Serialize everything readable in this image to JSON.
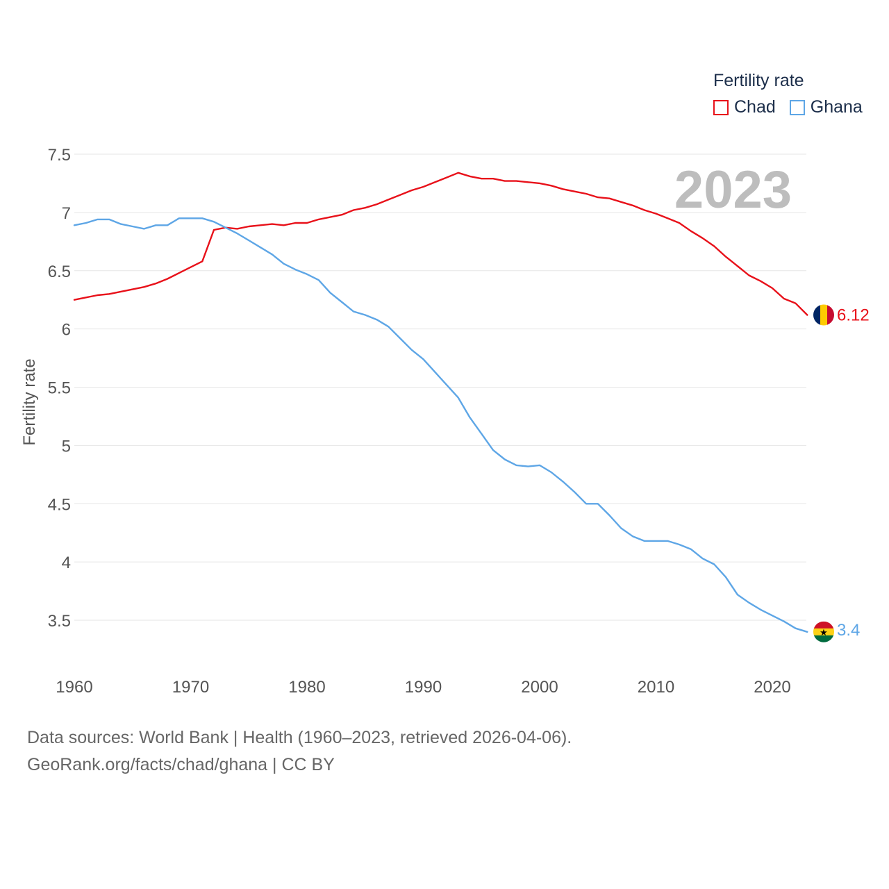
{
  "legend": {
    "title": "Fertility rate",
    "items": [
      {
        "name": "Chad",
        "color": "#e8111a"
      },
      {
        "name": "Ghana",
        "color": "#5ea6e6"
      }
    ]
  },
  "year_label": "2023",
  "footer": {
    "line1": "Data sources: World Bank | Health (1960–2023, retrieved 2026-04-06).",
    "line2": "GeoRank.org/facts/chad/ghana | CC BY"
  },
  "chart_data": {
    "type": "line",
    "title": "",
    "xlabel": "",
    "ylabel": "Fertility rate",
    "xlim": [
      1960,
      2023
    ],
    "ylim": [
      3.5,
      7.5
    ],
    "xticks": [
      "1960",
      "1970",
      "1980",
      "1990",
      "2000",
      "2010",
      "2020"
    ],
    "yticks": [
      "3.5",
      "4",
      "4.5",
      "5",
      "5.5",
      "6",
      "6.5",
      "7",
      "7.5"
    ],
    "x": [
      1960,
      1961,
      1962,
      1963,
      1964,
      1965,
      1966,
      1967,
      1968,
      1969,
      1970,
      1971,
      1972,
      1973,
      1974,
      1975,
      1976,
      1977,
      1978,
      1979,
      1980,
      1981,
      1982,
      1983,
      1984,
      1985,
      1986,
      1987,
      1988,
      1989,
      1990,
      1991,
      1992,
      1993,
      1994,
      1995,
      1996,
      1997,
      1998,
      1999,
      2000,
      2001,
      2002,
      2003,
      2004,
      2005,
      2006,
      2007,
      2008,
      2009,
      2010,
      2011,
      2012,
      2013,
      2014,
      2015,
      2016,
      2017,
      2018,
      2019,
      2020,
      2021,
      2022,
      2023
    ],
    "series": [
      {
        "name": "Chad",
        "color": "#e8111a",
        "end_label": "6.12",
        "values": [
          6.25,
          6.27,
          6.29,
          6.3,
          6.32,
          6.34,
          6.36,
          6.39,
          6.43,
          6.48,
          6.53,
          6.58,
          6.85,
          6.87,
          6.86,
          6.88,
          6.89,
          6.9,
          6.89,
          6.91,
          6.91,
          6.94,
          6.96,
          6.98,
          7.02,
          7.04,
          7.07,
          7.11,
          7.15,
          7.19,
          7.22,
          7.26,
          7.3,
          7.34,
          7.31,
          7.29,
          7.29,
          7.27,
          7.27,
          7.26,
          7.25,
          7.23,
          7.2,
          7.18,
          7.16,
          7.13,
          7.12,
          7.09,
          7.06,
          7.02,
          6.99,
          6.95,
          6.91,
          6.84,
          6.78,
          6.71,
          6.62,
          6.54,
          6.46,
          6.41,
          6.35,
          6.26,
          6.22,
          6.12
        ]
      },
      {
        "name": "Ghana",
        "color": "#5ea6e6",
        "end_label": "3.4",
        "values": [
          6.89,
          6.91,
          6.94,
          6.94,
          6.9,
          6.88,
          6.86,
          6.89,
          6.89,
          6.95,
          6.95,
          6.95,
          6.92,
          6.87,
          6.82,
          6.76,
          6.7,
          6.64,
          6.56,
          6.51,
          6.47,
          6.42,
          6.31,
          6.23,
          6.15,
          6.12,
          6.08,
          6.02,
          5.92,
          5.82,
          5.74,
          5.63,
          5.52,
          5.41,
          5.24,
          5.1,
          4.96,
          4.88,
          4.83,
          4.82,
          4.83,
          4.77,
          4.69,
          4.6,
          4.5,
          4.5,
          4.4,
          4.29,
          4.22,
          4.18,
          4.18,
          4.18,
          4.15,
          4.11,
          4.03,
          3.98,
          3.87,
          3.72,
          3.65,
          3.59,
          3.54,
          3.49,
          3.43,
          3.4
        ]
      }
    ]
  }
}
